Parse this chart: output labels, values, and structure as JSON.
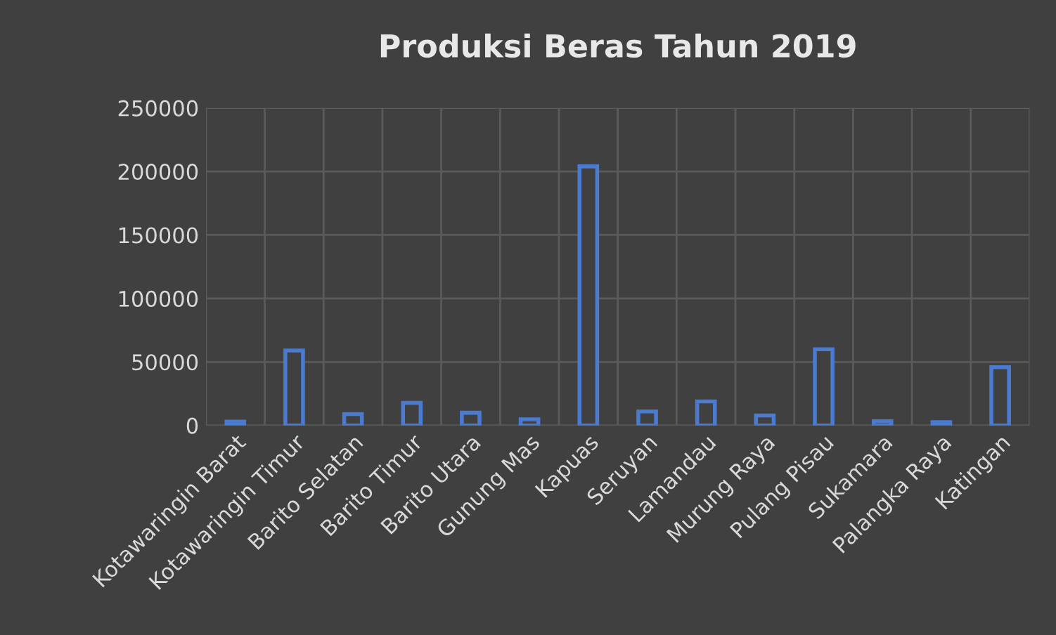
{
  "chart_data": {
    "type": "bar",
    "title": "Produksi Beras Tahun 2019",
    "categories": [
      "Kotawaringin Barat",
      "Kotawaringin Timur",
      "Barito Selatan",
      "Barito Timur",
      "Barito Utara",
      "Gunung Mas",
      "Kapuas",
      "Seruyan",
      "Lamandau",
      "Murung Raya",
      "Pulang Pisau",
      "Sukamara",
      "Palangka Raya",
      "Katingan"
    ],
    "values": [
      3000,
      59000,
      8900,
      17800,
      10000,
      4800,
      204000,
      11000,
      18900,
      7800,
      60000,
      3300,
      2600,
      45900
    ],
    "color": "#4a7bd0",
    "ylim": [
      0,
      250000
    ],
    "yticks": [
      0,
      50000,
      100000,
      150000,
      200000,
      250000
    ],
    "grid": true
  }
}
